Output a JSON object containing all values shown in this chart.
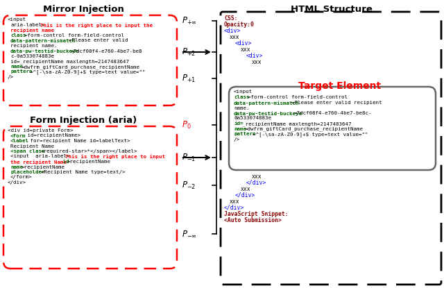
{
  "title_left": "Mirror Injection",
  "title_right": "HTML Structure",
  "title_bottom_left": "Form Injection (aria)",
  "target_element_label": "Target Element",
  "js_line1": "JavaScript Snippet:",
  "js_line2": "<Auto Submission>",
  "bg_color": "white"
}
